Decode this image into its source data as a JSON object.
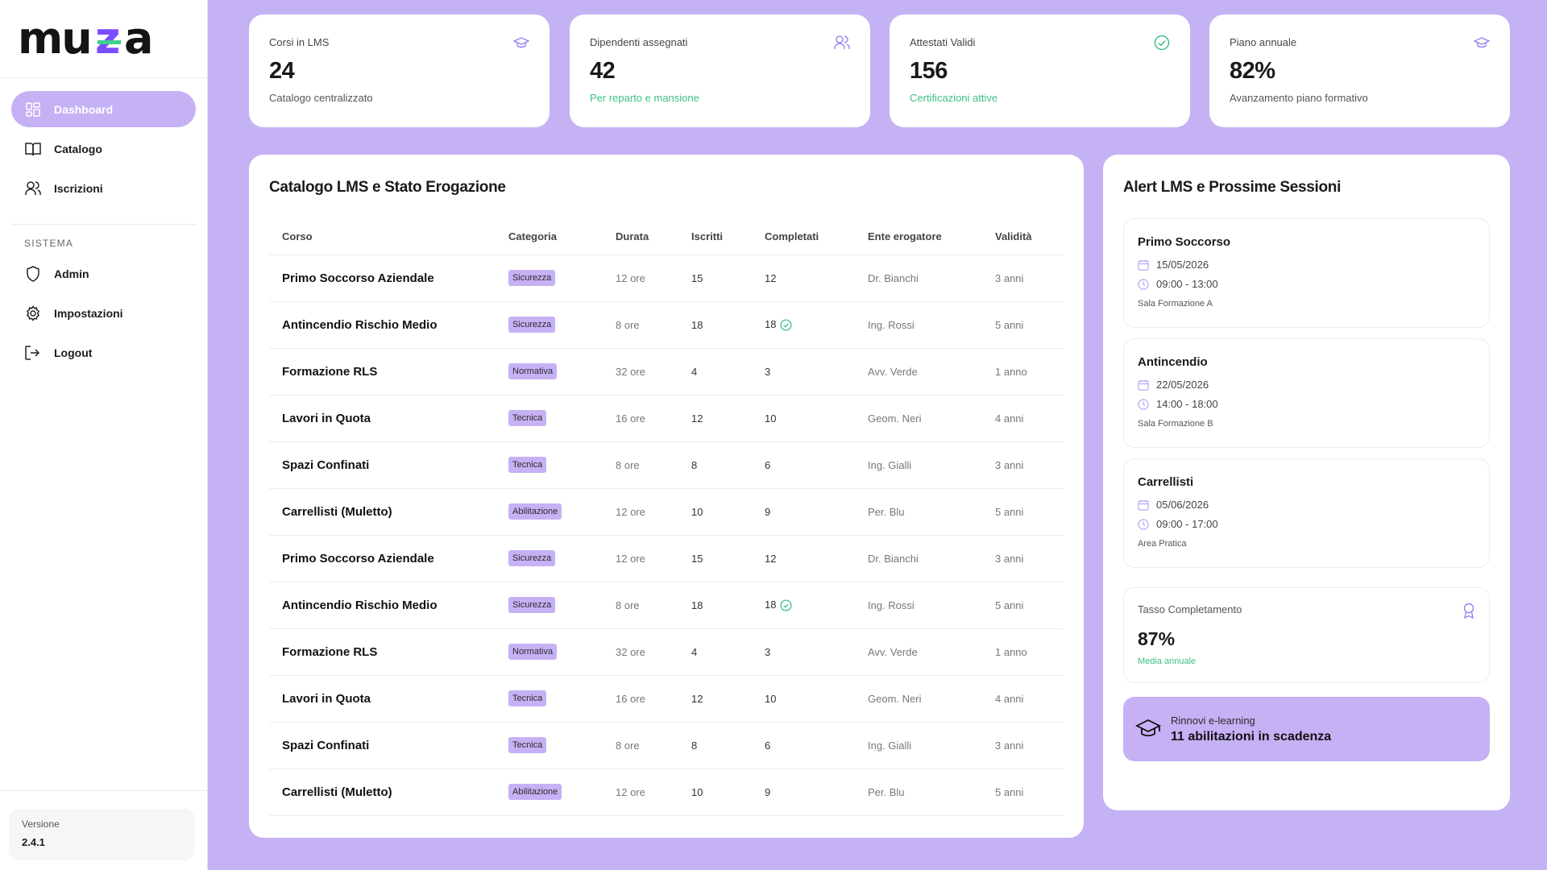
{
  "app": {
    "brand": "muza",
    "accent": "#c6b1f5",
    "background": "#c4b2f4",
    "success": "#3fbf85"
  },
  "sidebar": {
    "items": [
      {
        "label": "Dashboard",
        "icon": "dashboard-grid-icon",
        "active": true
      },
      {
        "label": "Catalogo",
        "icon": "book-icon"
      },
      {
        "label": "Iscrizioni",
        "icon": "users-icon"
      }
    ],
    "section_label": "SISTEMA",
    "system_items": [
      {
        "label": "Admin",
        "icon": "shield-icon"
      },
      {
        "label": "Impostazioni",
        "icon": "gear-icon"
      },
      {
        "label": "Logout",
        "icon": "logout-icon"
      }
    ],
    "version_label": "Versione",
    "version_value": "2.4.1"
  },
  "stats": [
    {
      "label": "Corsi in LMS",
      "value": "24",
      "sub": "Catalogo centralizzato",
      "icon": "graduation-cap-icon"
    },
    {
      "label": "Dipendenti assegnati",
      "value": "42",
      "sub": "Per reparto e mansione",
      "icon": "users-icon"
    },
    {
      "label": "Attestati Validi",
      "value": "156",
      "sub": "Certificazioni attive",
      "icon": "check-circle-icon"
    },
    {
      "label": "Piano annuale",
      "value": "82%",
      "sub": "Avanzamento piano formativo",
      "icon": "graduation-cap-icon"
    }
  ],
  "catalog": {
    "title": "Catalogo LMS e Stato Erogazione",
    "columns": [
      "Corso",
      "Categoria",
      "Durata",
      "Iscritti",
      "Completati",
      "Ente erogatore",
      "Validità"
    ],
    "rows": [
      {
        "course": "Primo Soccorso Aziendale",
        "category": "Sicurezza",
        "duration": "12 ore",
        "enrolled": "15",
        "completed": "12",
        "provider": "Dr. Bianchi",
        "validity": "3 anni",
        "all_done": false
      },
      {
        "course": "Antincendio Rischio Medio",
        "category": "Sicurezza",
        "duration": "8 ore",
        "enrolled": "18",
        "completed": "18",
        "provider": "Ing. Rossi",
        "validity": "5 anni",
        "all_done": true
      },
      {
        "course": "Formazione RLS",
        "category": "Normativa",
        "duration": "32 ore",
        "enrolled": "4",
        "completed": "3",
        "provider": "Avv. Verde",
        "validity": "1 anno",
        "all_done": false
      },
      {
        "course": "Lavori in Quota",
        "category": "Tecnica",
        "duration": "16 ore",
        "enrolled": "12",
        "completed": "10",
        "provider": "Geom. Neri",
        "validity": "4 anni",
        "all_done": false
      },
      {
        "course": "Spazi Confinati",
        "category": "Tecnica",
        "duration": "8 ore",
        "enrolled": "8",
        "completed": "6",
        "provider": "Ing. Gialli",
        "validity": "3 anni",
        "all_done": false
      },
      {
        "course": "Carrellisti (Muletto)",
        "category": "Abilitazione",
        "duration": "12 ore",
        "enrolled": "10",
        "completed": "9",
        "provider": "Per. Blu",
        "validity": "5 anni",
        "all_done": false
      },
      {
        "course": "Primo Soccorso Aziendale",
        "category": "Sicurezza",
        "duration": "12 ore",
        "enrolled": "15",
        "completed": "12",
        "provider": "Dr. Bianchi",
        "validity": "3 anni",
        "all_done": false
      },
      {
        "course": "Antincendio Rischio Medio",
        "category": "Sicurezza",
        "duration": "8 ore",
        "enrolled": "18",
        "completed": "18",
        "provider": "Ing. Rossi",
        "validity": "5 anni",
        "all_done": true
      },
      {
        "course": "Formazione RLS",
        "category": "Normativa",
        "duration": "32 ore",
        "enrolled": "4",
        "completed": "3",
        "provider": "Avv. Verde",
        "validity": "1 anno",
        "all_done": false
      },
      {
        "course": "Lavori in Quota",
        "category": "Tecnica",
        "duration": "16 ore",
        "enrolled": "12",
        "completed": "10",
        "provider": "Geom. Neri",
        "validity": "4 anni",
        "all_done": false
      },
      {
        "course": "Spazi Confinati",
        "category": "Tecnica",
        "duration": "8 ore",
        "enrolled": "8",
        "completed": "6",
        "provider": "Ing. Gialli",
        "validity": "3 anni",
        "all_done": false
      },
      {
        "course": "Carrellisti (Muletto)",
        "category": "Abilitazione",
        "duration": "12 ore",
        "enrolled": "10",
        "completed": "9",
        "provider": "Per. Blu",
        "validity": "5 anni",
        "all_done": false
      }
    ]
  },
  "alerts": {
    "title": "Alert LMS e Prossime Sessioni",
    "sessions": [
      {
        "title": "Primo Soccorso",
        "date": "15/05/2026",
        "time": "09:00 - 13:00",
        "location": "Sala Formazione A"
      },
      {
        "title": "Antincendio",
        "date": "22/05/2026",
        "time": "14:00 - 18:00",
        "location": "Sala Formazione B"
      },
      {
        "title": "Carrellisti",
        "date": "05/06/2026",
        "time": "09:00 - 17:00",
        "location": "Area Pratica"
      }
    ],
    "rate": {
      "label": "Tasso Completamento",
      "value": "87%",
      "sub": "Media annuale",
      "icon": "award-icon"
    },
    "renew": {
      "label": "Rinnovi e-learning",
      "value": "11 abilitazioni in scadenza",
      "icon": "graduation-cap-icon"
    }
  }
}
